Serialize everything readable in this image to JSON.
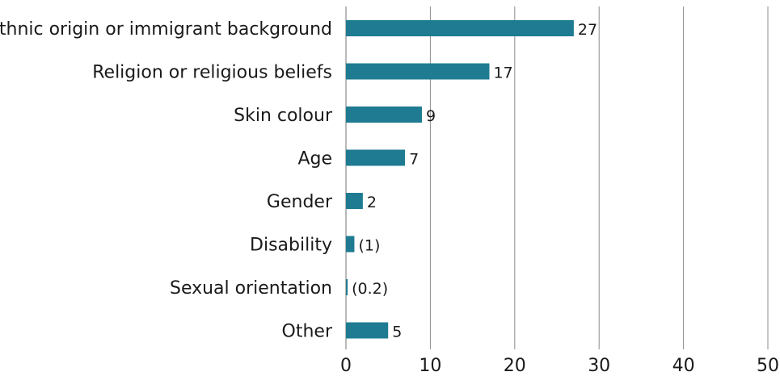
{
  "chart_data": {
    "type": "bar",
    "orientation": "horizontal",
    "title": "",
    "xlabel": "",
    "ylabel": "",
    "categories": [
      "Ethnic origin or immigrant background",
      "Religion or religious beliefs",
      "Skin colour",
      "Age",
      "Gender",
      "Disability",
      "Sexual orientation",
      "Other"
    ],
    "values": [
      27,
      17,
      9,
      7,
      2,
      1,
      0.2,
      5
    ],
    "value_labels": [
      "27",
      "17",
      "9",
      "7",
      "2",
      "(1)",
      "(0.2)",
      "5"
    ],
    "xlim": [
      0,
      50
    ],
    "xticks": [
      0,
      10,
      20,
      30,
      40,
      50
    ],
    "xtick_labels": [
      "0",
      "10",
      "20",
      "30",
      "40",
      "50"
    ],
    "grid": "vertical",
    "legend": "none",
    "bar_color": "#1e7b92",
    "grid_color": "#8c8c8c"
  }
}
